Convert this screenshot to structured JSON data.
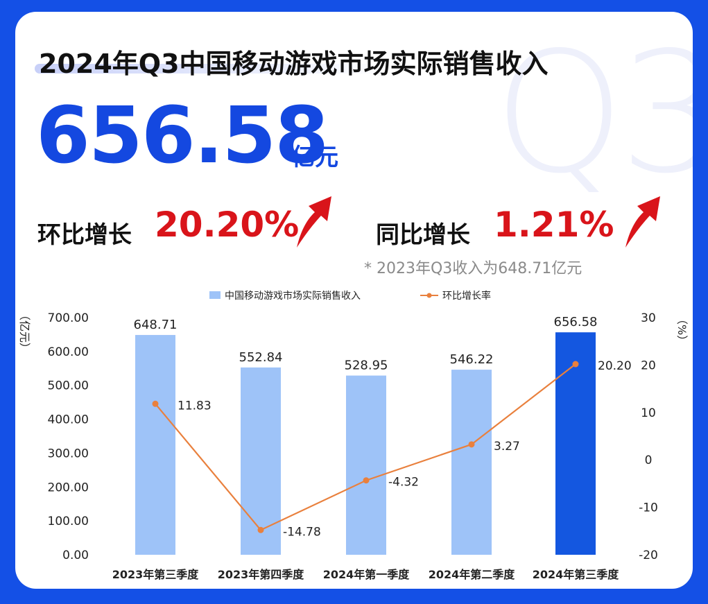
{
  "title": "2024年Q3中国移动游戏市场实际销售收入",
  "watermark": "Q3",
  "headline": {
    "value": "656.58",
    "unit": "亿元"
  },
  "stats": {
    "qoq_label": "环比增长",
    "qoq_value": "20.20%",
    "yoy_label": "同比增长",
    "yoy_value": "1.21%"
  },
  "note": "* 2023年Q3收入为648.71亿元",
  "colors": {
    "background": "#1450e6",
    "title_accent": "#1448e0",
    "growth_red": "#d9141a",
    "bar_light": "#9ec3f8",
    "bar_highlight": "#1457e0",
    "line": "#e9803d"
  },
  "icons": {
    "qoq_arrow": "arrow-up-icon",
    "yoy_arrow": "arrow-up-icon"
  },
  "chart_data": {
    "type": "bar",
    "categories": [
      "2023年第三季度",
      "2023年第四季度",
      "2024年第一季度",
      "2024年第二季度",
      "2024年第三季度"
    ],
    "series": [
      {
        "name": "中国移动游戏市场实际销售收入",
        "type": "bar",
        "axis": "left",
        "values": [
          648.71,
          552.84,
          528.95,
          546.22,
          656.58
        ],
        "labels": [
          "648.71",
          "552.84",
          "528.95",
          "546.22",
          "656.58"
        ],
        "highlight_index": 4
      },
      {
        "name": "环比增长率",
        "type": "line",
        "axis": "right",
        "values": [
          11.83,
          -14.78,
          -4.32,
          3.27,
          20.2
        ],
        "labels": [
          "11.83",
          "-14.78",
          "-4.32",
          "3.27",
          "20.20"
        ]
      }
    ],
    "left_axis": {
      "unit": "（亿元）",
      "ylim": [
        0,
        700
      ],
      "ticks": [
        "0.00",
        "100.00",
        "200.00",
        "300.00",
        "400.00",
        "500.00",
        "600.00",
        "700.00"
      ]
    },
    "right_axis": {
      "unit": "（%）",
      "ylim": [
        -20,
        30
      ],
      "ticks": [
        "-20",
        "-10",
        "0",
        "10",
        "20",
        "30"
      ]
    },
    "legend_position": "top-center",
    "grid": false
  }
}
